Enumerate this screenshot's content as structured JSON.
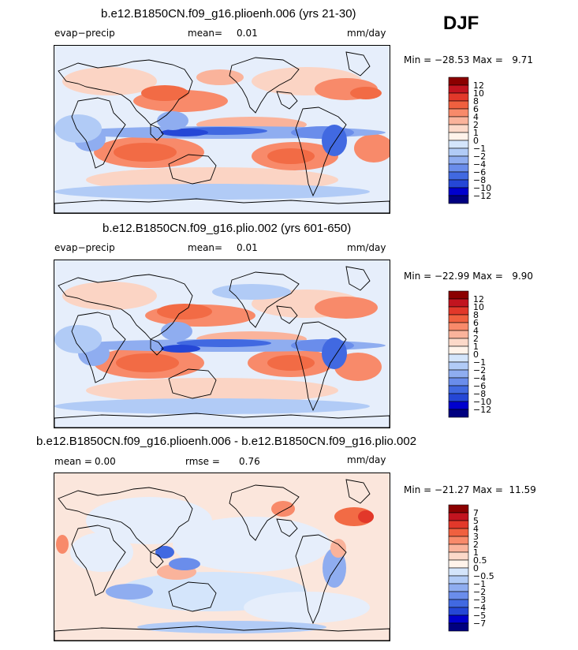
{
  "season": "DJF",
  "colors": {
    "land_outline": "#000000",
    "ocean_base": "#d6e4f7",
    "warm_fill": "#f26b45",
    "cool_fill": "#3f67d9",
    "light_warm": "#fbd4c4"
  },
  "panels": [
    {
      "title": "b.e12.B1850CN.f09_g16.plioenh.006 (yrs 21-30)",
      "left_label": "evap−precip",
      "center_label": "mean=",
      "center_value": "0.01",
      "units": "mm/day",
      "stats_text": "Min = −28.53 Max =   9.71",
      "colorbar": {
        "colors": [
          "#8b0000",
          "#c2141f",
          "#e2382a",
          "#f0603f",
          "#f88a6a",
          "#fab39b",
          "#fcd9c9",
          "#fff3ea",
          "#d4e5fb",
          "#b1cbf6",
          "#8fadf0",
          "#6a8deb",
          "#4169e1",
          "#2547d6",
          "#0000cd",
          "#000080"
        ],
        "labels": [
          "12",
          "10",
          "8",
          "6",
          "4",
          "2",
          "1",
          "0",
          "−1",
          "−2",
          "−4",
          "−6",
          "−8",
          "−10",
          "−12"
        ]
      }
    },
    {
      "title": "b.e12.B1850CN.f09_g16.plio.002 (yrs 601-650)",
      "left_label": "evap−precip",
      "center_label": "mean=",
      "center_value": "0.01",
      "units": "mm/day",
      "stats_text": "Min = −22.99 Max =   9.90",
      "colorbar": {
        "colors": [
          "#8b0000",
          "#c2141f",
          "#e2382a",
          "#f0603f",
          "#f88a6a",
          "#fab39b",
          "#fcd9c9",
          "#fff3ea",
          "#d4e5fb",
          "#b1cbf6",
          "#8fadf0",
          "#6a8deb",
          "#4169e1",
          "#2547d6",
          "#0000cd",
          "#000080"
        ],
        "labels": [
          "12",
          "10",
          "8",
          "6",
          "4",
          "2",
          "1",
          "0",
          "−1",
          "−2",
          "−4",
          "−6",
          "−8",
          "−10",
          "−12"
        ]
      }
    },
    {
      "title": "b.e12.B1850CN.f09_g16.plioenh.006 - b.e12.B1850CN.f09_g16.plio.002",
      "left_label": "mean =",
      "left_value": "0.00",
      "center_label": "rmse =",
      "center_value": "0.76",
      "units": "mm/day",
      "stats_text": "Min = −21.27 Max =  11.59",
      "colorbar": {
        "colors": [
          "#8b0000",
          "#c2141f",
          "#e2382a",
          "#f0603f",
          "#f88a6a",
          "#fab39b",
          "#fcd9c9",
          "#fff3ea",
          "#d4e5fb",
          "#b1cbf6",
          "#8fadf0",
          "#6a8deb",
          "#4169e1",
          "#2547d6",
          "#0000cd",
          "#000080"
        ],
        "labels": [
          "7",
          "5",
          "4",
          "3",
          "2",
          "1",
          "0.5",
          "0",
          "−0.5",
          "−1",
          "−2",
          "−3",
          "−4",
          "−5",
          "−7"
        ]
      }
    }
  ],
  "chart_data": [
    {
      "type": "heatmap",
      "title": "b.e12.B1850CN.f09_g16.plioenh.006 (yrs 21-30)",
      "variable": "evap−precip",
      "units": "mm/day",
      "season": "DJF",
      "mean": 0.01,
      "min": -28.53,
      "max": 9.71,
      "contour_levels": [
        -12,
        -10,
        -8,
        -6,
        -4,
        -2,
        -1,
        0,
        1,
        2,
        4,
        6,
        8,
        10,
        12
      ]
    },
    {
      "type": "heatmap",
      "title": "b.e12.B1850CN.f09_g16.plio.002 (yrs 601-650)",
      "variable": "evap−precip",
      "units": "mm/day",
      "season": "DJF",
      "mean": 0.01,
      "min": -22.99,
      "max": 9.9,
      "contour_levels": [
        -12,
        -10,
        -8,
        -6,
        -4,
        -2,
        -1,
        0,
        1,
        2,
        4,
        6,
        8,
        10,
        12
      ]
    },
    {
      "type": "heatmap",
      "title": "b.e12.B1850CN.f09_g16.plioenh.006 - b.e12.B1850CN.f09_g16.plio.002",
      "variable": "difference",
      "units": "mm/day",
      "season": "DJF",
      "mean": 0.0,
      "rmse": 0.76,
      "min": -21.27,
      "max": 11.59,
      "contour_levels": [
        -7,
        -5,
        -4,
        -3,
        -2,
        -1,
        -0.5,
        0,
        0.5,
        1,
        2,
        3,
        4,
        5,
        7
      ]
    }
  ]
}
